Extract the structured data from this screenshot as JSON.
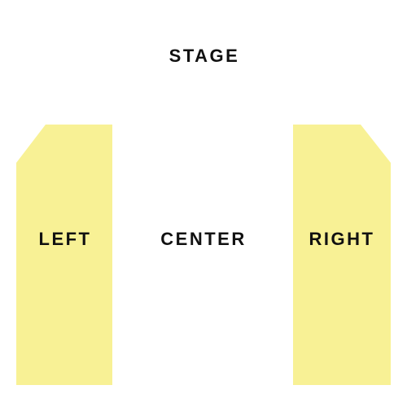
{
  "seating_chart": {
    "stage_label": "STAGE",
    "sections": [
      {
        "id": "left",
        "label": "LEFT",
        "color": "#f8f195"
      },
      {
        "id": "center",
        "label": "CENTER",
        "color": "#ffffff"
      },
      {
        "id": "right",
        "label": "RIGHT",
        "color": "#f8f195"
      }
    ]
  }
}
